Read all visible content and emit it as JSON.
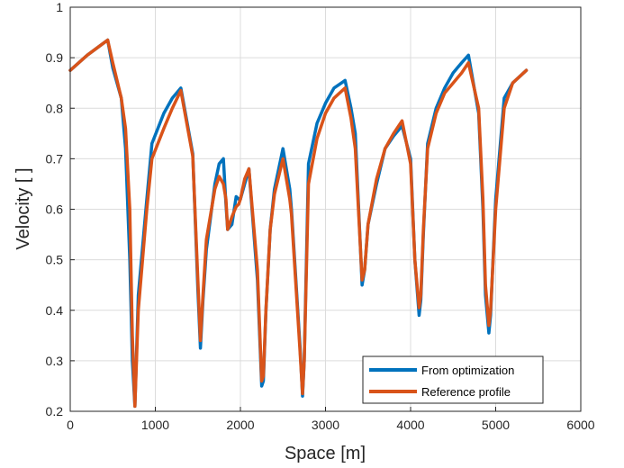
{
  "chart_data": {
    "type": "line",
    "xlabel": "Space [m]",
    "ylabel": "Velocity [ ]",
    "xlim": [
      0,
      6000
    ],
    "ylim": [
      0.2,
      1
    ],
    "xticks": [
      0,
      1000,
      2000,
      3000,
      4000,
      5000,
      6000
    ],
    "yticks": [
      0.2,
      0.3,
      0.4,
      0.5,
      0.6,
      0.7,
      0.8,
      0.9,
      1
    ],
    "xtick_labels": [
      "0",
      "1000",
      "2000",
      "3000",
      "4000",
      "5000",
      "6000"
    ],
    "ytick_labels": [
      "0.2",
      "0.3",
      "0.4",
      "0.5",
      "0.6",
      "0.7",
      "0.8",
      "0.9",
      "1"
    ],
    "grid": true,
    "legend_position": "bottom-right",
    "series": [
      {
        "name": "From optimization",
        "color": "#0072BD",
        "x": [
          0,
          200,
          400,
          440,
          500,
          600,
          650,
          700,
          730,
          760,
          800,
          900,
          960,
          1100,
          1200,
          1300,
          1440,
          1500,
          1530,
          1560,
          1600,
          1700,
          1750,
          1800,
          1830,
          1850,
          1900,
          1950,
          1980,
          2000,
          2050,
          2100,
          2200,
          2250,
          2270,
          2300,
          2350,
          2400,
          2500,
          2580,
          2600,
          2700,
          2730,
          2750,
          2800,
          2900,
          3000,
          3100,
          3230,
          3300,
          3350,
          3430,
          3460,
          3500,
          3600,
          3700,
          3800,
          3900,
          4000,
          4050,
          4100,
          4120,
          4150,
          4200,
          4300,
          4400,
          4500,
          4600,
          4680,
          4800,
          4850,
          4880,
          4920,
          4940,
          5000,
          5100,
          5200,
          5360
        ],
        "y": [
          0.875,
          0.905,
          0.93,
          0.935,
          0.88,
          0.82,
          0.72,
          0.5,
          0.3,
          0.21,
          0.43,
          0.62,
          0.73,
          0.79,
          0.82,
          0.84,
          0.71,
          0.44,
          0.325,
          0.42,
          0.52,
          0.65,
          0.69,
          0.7,
          0.61,
          0.56,
          0.57,
          0.625,
          0.62,
          0.62,
          0.65,
          0.68,
          0.46,
          0.25,
          0.26,
          0.4,
          0.56,
          0.64,
          0.72,
          0.64,
          0.6,
          0.33,
          0.23,
          0.3,
          0.69,
          0.77,
          0.81,
          0.84,
          0.855,
          0.8,
          0.75,
          0.45,
          0.48,
          0.57,
          0.65,
          0.72,
          0.745,
          0.765,
          0.7,
          0.5,
          0.39,
          0.42,
          0.55,
          0.73,
          0.8,
          0.84,
          0.87,
          0.89,
          0.905,
          0.79,
          0.6,
          0.43,
          0.355,
          0.39,
          0.62,
          0.82,
          0.85,
          0.875
        ]
      },
      {
        "name": "Reference profile",
        "color": "#D95319",
        "x": [
          0,
          200,
          400,
          440,
          500,
          600,
          650,
          700,
          730,
          760,
          800,
          900,
          960,
          1100,
          1200,
          1300,
          1440,
          1500,
          1530,
          1560,
          1600,
          1700,
          1750,
          1800,
          1830,
          1850,
          1900,
          1950,
          1980,
          2000,
          2050,
          2100,
          2200,
          2250,
          2270,
          2300,
          2350,
          2400,
          2500,
          2580,
          2600,
          2700,
          2730,
          2750,
          2800,
          2900,
          3000,
          3100,
          3230,
          3300,
          3350,
          3430,
          3460,
          3500,
          3600,
          3700,
          3800,
          3900,
          4000,
          4050,
          4100,
          4120,
          4150,
          4200,
          4300,
          4400,
          4500,
          4600,
          4680,
          4800,
          4850,
          4880,
          4920,
          4940,
          5000,
          5100,
          5200,
          5360
        ],
        "y": [
          0.875,
          0.905,
          0.93,
          0.935,
          0.89,
          0.82,
          0.76,
          0.6,
          0.35,
          0.21,
          0.4,
          0.6,
          0.7,
          0.76,
          0.8,
          0.835,
          0.705,
          0.46,
          0.34,
          0.43,
          0.54,
          0.64,
          0.665,
          0.65,
          0.62,
          0.56,
          0.585,
          0.605,
          0.61,
          0.62,
          0.66,
          0.68,
          0.48,
          0.26,
          0.27,
          0.4,
          0.56,
          0.63,
          0.7,
          0.62,
          0.59,
          0.32,
          0.235,
          0.3,
          0.65,
          0.74,
          0.79,
          0.82,
          0.84,
          0.78,
          0.72,
          0.46,
          0.48,
          0.57,
          0.66,
          0.72,
          0.75,
          0.775,
          0.69,
          0.5,
          0.405,
          0.43,
          0.56,
          0.72,
          0.79,
          0.83,
          0.85,
          0.87,
          0.89,
          0.8,
          0.62,
          0.45,
          0.37,
          0.4,
          0.6,
          0.8,
          0.85,
          0.875
        ]
      }
    ]
  }
}
